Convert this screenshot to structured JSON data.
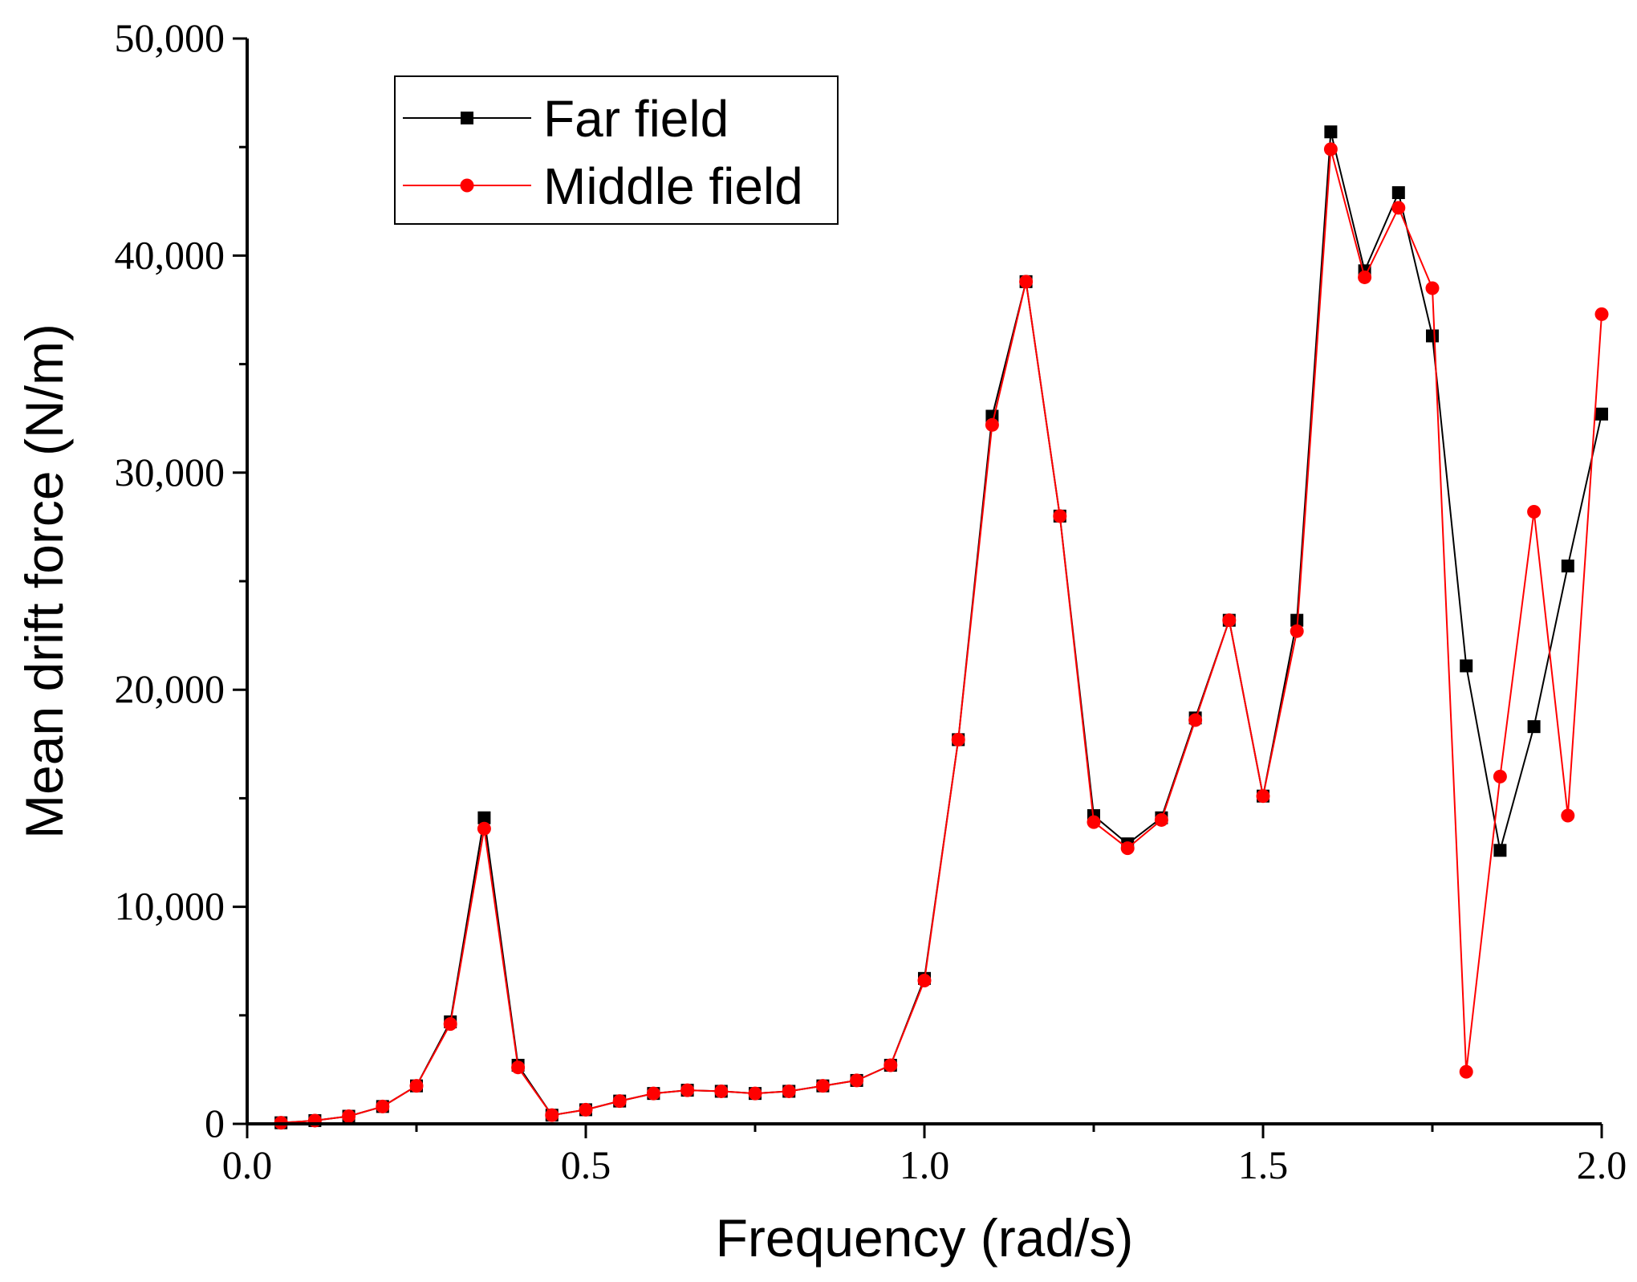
{
  "chart_data": {
    "type": "line",
    "title": "",
    "xlabel": "Frequency (rad/s)",
    "ylabel": "Mean drift force (N/m)",
    "xlim": [
      0.0,
      2.0
    ],
    "ylim": [
      0,
      50000
    ],
    "xticks": [
      0.0,
      0.5,
      1.0,
      1.5,
      2.0
    ],
    "xtick_labels": [
      "0.0",
      "0.5",
      "1.0",
      "1.5",
      "2.0"
    ],
    "yticks": [
      0,
      10000,
      20000,
      30000,
      40000,
      50000
    ],
    "ytick_labels": [
      "0",
      "10,000",
      "20,000",
      "30,000",
      "40,000",
      "50,000"
    ],
    "grid": false,
    "legend_position": "top-left",
    "x": [
      0.05,
      0.1,
      0.15,
      0.2,
      0.25,
      0.3,
      0.35,
      0.4,
      0.45,
      0.5,
      0.55,
      0.6,
      0.65,
      0.7,
      0.75,
      0.8,
      0.85,
      0.9,
      0.95,
      1.0,
      1.05,
      1.1,
      1.15,
      1.2,
      1.25,
      1.3,
      1.35,
      1.4,
      1.45,
      1.5,
      1.55,
      1.6,
      1.65,
      1.7,
      1.75,
      1.8,
      1.85,
      1.9,
      1.95,
      2.0
    ],
    "series": [
      {
        "name": "Far field",
        "color": "#000000",
        "marker": "square",
        "values": [
          50,
          150,
          350,
          800,
          1750,
          4700,
          14100,
          2700,
          400,
          650,
          1050,
          1400,
          1550,
          1500,
          1400,
          1500,
          1750,
          2000,
          2700,
          6700,
          17700,
          32600,
          38800,
          28000,
          14200,
          12900,
          14100,
          18700,
          23200,
          15100,
          23200,
          45700,
          39300,
          42900,
          36300,
          21100,
          12600,
          18300,
          25700,
          32700
        ]
      },
      {
        "name": "Middle field",
        "color": "#ff0000",
        "marker": "circle",
        "values": [
          50,
          150,
          350,
          800,
          1750,
          4600,
          13600,
          2600,
          400,
          650,
          1050,
          1400,
          1550,
          1500,
          1400,
          1500,
          1750,
          2000,
          2700,
          6600,
          17700,
          32200,
          38800,
          28000,
          13900,
          12700,
          14000,
          18600,
          23200,
          15100,
          22700,
          44900,
          39000,
          42200,
          38500,
          2400,
          16000,
          28200,
          14200,
          37300
        ]
      }
    ]
  }
}
